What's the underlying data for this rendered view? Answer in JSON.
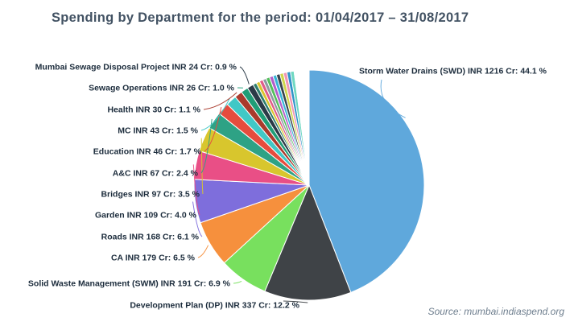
{
  "title": "Spending by Department for the period: 01/04/2017 – 31/08/2017",
  "source": "Source: mumbai.indiaspend.org",
  "chart_data": {
    "type": "pie",
    "title": "Spending by Department for the period: 01/04/2017 – 31/08/2017",
    "unit": "INR Cr",
    "layout": {
      "legend": "none",
      "labels": "outside-callout",
      "start_angle_deg": 0,
      "direction": "clockwise"
    },
    "slices": [
      {
        "dept": "Storm Water Drains (SWD)",
        "inr_cr": 1216,
        "pct": 44.1,
        "color": "#5fa8dc",
        "display": "Storm Water Drains (SWD) INR 1216 Cr: 44.1 %",
        "side": "right"
      },
      {
        "dept": "Development Plan (DP)",
        "inr_cr": 337,
        "pct": 12.2,
        "color": "#3f4347",
        "display": "Development Plan (DP) INR 337 Cr: 12.2 %",
        "side": "bottom"
      },
      {
        "dept": "Solid Waste Management (SWM)",
        "inr_cr": 191,
        "pct": 6.9,
        "color": "#78e05e",
        "display": "Solid Waste Management (SWM) INR 191 Cr: 6.9 %",
        "side": "left"
      },
      {
        "dept": "CA",
        "inr_cr": 179,
        "pct": 6.5,
        "color": "#f6903d",
        "display": "CA INR 179 Cr: 6.5 %",
        "side": "left"
      },
      {
        "dept": "Roads",
        "inr_cr": 168,
        "pct": 6.1,
        "color": "#7e6edc",
        "display": "Roads INR 168 Cr: 6.1 %",
        "side": "left"
      },
      {
        "dept": "Garden",
        "inr_cr": 109,
        "pct": 4.0,
        "color": "#e94f86",
        "display": "Garden INR 109 Cr: 4.0 %",
        "side": "left"
      },
      {
        "dept": "Bridges",
        "inr_cr": 97,
        "pct": 3.5,
        "color": "#d8c62d",
        "display": "Bridges INR 97 Cr: 3.5 %",
        "side": "left"
      },
      {
        "dept": "A&C",
        "inr_cr": 67,
        "pct": 2.4,
        "color": "#2ea285",
        "display": "A&C INR 67 Cr: 2.4 %",
        "side": "left"
      },
      {
        "dept": "Education",
        "inr_cr": 46,
        "pct": 1.7,
        "color": "#e64c3e",
        "display": "Education INR 46 Cr: 1.7 %",
        "side": "left"
      },
      {
        "dept": "MC",
        "inr_cr": 43,
        "pct": 1.5,
        "color": "#41c8c6",
        "display": "MC INR 43 Cr: 1.5 %",
        "side": "left"
      },
      {
        "dept": "Health",
        "inr_cr": 30,
        "pct": 1.1,
        "color": "#aa3a2c",
        "display": "Health INR 30 Cr: 1.1 %",
        "side": "left"
      },
      {
        "dept": "Sewage Operations",
        "inr_cr": 26,
        "pct": 1.0,
        "color": "#1f9e77",
        "display": "Sewage Operations INR 26 Cr: 1.0 %",
        "side": "left"
      },
      {
        "dept": "Mumbai Sewage Disposal Project",
        "inr_cr": 24,
        "pct": 0.9,
        "color": "#2b3a47",
        "display": "Mumbai Sewage Disposal Project INR 24 Cr: 0.9 %",
        "side": "left"
      }
    ],
    "unlabeled_slices": [
      {
        "pct": 0.5,
        "color": "#2e7d6e"
      },
      {
        "pct": 0.5,
        "color": "#d9c52e"
      },
      {
        "pct": 0.5,
        "color": "#e05c8a"
      },
      {
        "pct": 0.5,
        "color": "#8e9aa3"
      },
      {
        "pct": 0.5,
        "color": "#54bf5c"
      },
      {
        "pct": 0.5,
        "color": "#b35fc9"
      },
      {
        "pct": 0.5,
        "color": "#36b6d8"
      },
      {
        "pct": 0.5,
        "color": "#39444e"
      },
      {
        "pct": 0.5,
        "color": "#cfd64c"
      },
      {
        "pct": 0.5,
        "color": "#f096b4"
      },
      {
        "pct": 0.5,
        "color": "#2f93c8"
      },
      {
        "pct": 0.5,
        "color": "#6fd8c2"
      },
      {
        "pct": 2.1,
        "color": "#ffffff"
      }
    ]
  }
}
